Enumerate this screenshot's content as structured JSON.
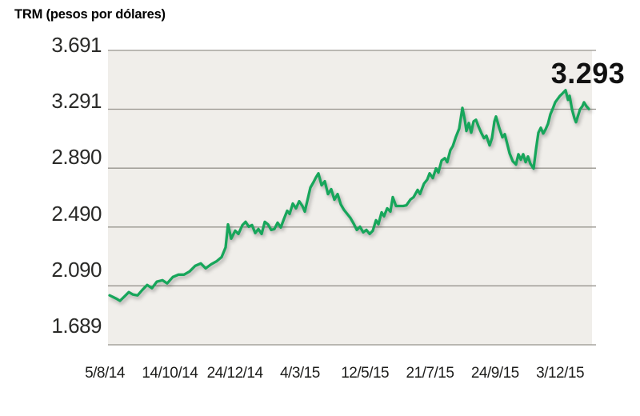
{
  "header": {
    "title": "TRM (pesos por dólares)"
  },
  "annotation": {
    "last_value_label": "3.293"
  },
  "chart_data": {
    "type": "line",
    "title": "TRM (pesos por dólares)",
    "series_name": "TRM",
    "ylabel": "pesos por dólar",
    "grid": "horizontal",
    "legend_position": "none",
    "y_range": [
      1689,
      3691
    ],
    "y_ticks": [
      {
        "label": "3.691",
        "value": 3691
      },
      {
        "label": "3.291",
        "value": 3291
      },
      {
        "label": "2.890",
        "value": 2890
      },
      {
        "label": "2.490",
        "value": 2490
      },
      {
        "label": "2.090",
        "value": 2090
      },
      {
        "label": "1.689",
        "value": 1689
      }
    ],
    "x_tick_labels": [
      "5/8/14",
      "14/10/14",
      "24/12/14",
      "4/3/15",
      "12/5/15",
      "21/7/15",
      "24/9/15",
      "3/12/15"
    ],
    "last_value": 3293,
    "last_value_label": "3.293",
    "colors": {
      "line": "#17a65b",
      "plot_background": "#f0eeea",
      "grid": "#97948e",
      "text": "#1d1d1b"
    },
    "points_x_unit": "px from plot left edge (plot width 610 px, 5/8/14 -> mid-Dec 2015)",
    "points": [
      [
        2,
        2025
      ],
      [
        10,
        2004
      ],
      [
        15,
        1988
      ],
      [
        21,
        2020
      ],
      [
        26,
        2047
      ],
      [
        31,
        2031
      ],
      [
        37,
        2025
      ],
      [
        43,
        2063
      ],
      [
        49,
        2096
      ],
      [
        55,
        2074
      ],
      [
        61,
        2118
      ],
      [
        68,
        2128
      ],
      [
        74,
        2107
      ],
      [
        81,
        2150
      ],
      [
        88,
        2166
      ],
      [
        95,
        2166
      ],
      [
        102,
        2188
      ],
      [
        109,
        2226
      ],
      [
        116,
        2242
      ],
      [
        122,
        2209
      ],
      [
        129,
        2237
      ],
      [
        136,
        2258
      ],
      [
        142,
        2285
      ],
      [
        147,
        2351
      ],
      [
        150,
        2508
      ],
      [
        154,
        2411
      ],
      [
        159,
        2465
      ],
      [
        163,
        2443
      ],
      [
        168,
        2503
      ],
      [
        172,
        2525
      ],
      [
        176,
        2492
      ],
      [
        180,
        2503
      ],
      [
        184,
        2449
      ],
      [
        188,
        2476
      ],
      [
        192,
        2443
      ],
      [
        196,
        2525
      ],
      [
        200,
        2508
      ],
      [
        204,
        2470
      ],
      [
        208,
        2476
      ],
      [
        212,
        2519
      ],
      [
        216,
        2487
      ],
      [
        220,
        2546
      ],
      [
        224,
        2600
      ],
      [
        227,
        2579
      ],
      [
        231,
        2649
      ],
      [
        235,
        2617
      ],
      [
        239,
        2665
      ],
      [
        243,
        2633
      ],
      [
        246,
        2595
      ],
      [
        249,
        2665
      ],
      [
        253,
        2758
      ],
      [
        257,
        2796
      ],
      [
        260,
        2828
      ],
      [
        263,
        2855
      ],
      [
        267,
        2774
      ],
      [
        271,
        2801
      ],
      [
        275,
        2714
      ],
      [
        279,
        2747
      ],
      [
        283,
        2676
      ],
      [
        287,
        2714
      ],
      [
        291,
        2644
      ],
      [
        295,
        2606
      ],
      [
        299,
        2579
      ],
      [
        303,
        2552
      ],
      [
        307,
        2514
      ],
      [
        311,
        2470
      ],
      [
        315,
        2492
      ],
      [
        319,
        2454
      ],
      [
        323,
        2470
      ],
      [
        327,
        2443
      ],
      [
        331,
        2465
      ],
      [
        335,
        2536
      ],
      [
        338,
        2509
      ],
      [
        342,
        2590
      ],
      [
        345,
        2563
      ],
      [
        349,
        2617
      ],
      [
        353,
        2595
      ],
      [
        356,
        2693
      ],
      [
        360,
        2633
      ],
      [
        365,
        2633
      ],
      [
        369,
        2633
      ],
      [
        373,
        2638
      ],
      [
        378,
        2677
      ],
      [
        382,
        2693
      ],
      [
        387,
        2742
      ],
      [
        390,
        2715
      ],
      [
        395,
        2785
      ],
      [
        399,
        2812
      ],
      [
        402,
        2855
      ],
      [
        406,
        2823
      ],
      [
        410,
        2888
      ],
      [
        413,
        2861
      ],
      [
        417,
        2942
      ],
      [
        421,
        2958
      ],
      [
        424,
        2931
      ],
      [
        428,
        3013
      ],
      [
        431,
        3040
      ],
      [
        435,
        3105
      ],
      [
        439,
        3159
      ],
      [
        443,
        3300
      ],
      [
        446,
        3219
      ],
      [
        448,
        3143
      ],
      [
        451,
        3197
      ],
      [
        454,
        3132
      ],
      [
        457,
        3208
      ],
      [
        460,
        3219
      ],
      [
        463,
        3175
      ],
      [
        467,
        3126
      ],
      [
        470,
        3094
      ],
      [
        473,
        3110
      ],
      [
        477,
        3045
      ],
      [
        480,
        3094
      ],
      [
        483,
        3208
      ],
      [
        485,
        3241
      ],
      [
        489,
        3165
      ],
      [
        493,
        3100
      ],
      [
        496,
        3121
      ],
      [
        499,
        3056
      ],
      [
        502,
        2991
      ],
      [
        506,
        2937
      ],
      [
        510,
        2915
      ],
      [
        513,
        2985
      ],
      [
        516,
        2948
      ],
      [
        519,
        2985
      ],
      [
        522,
        2931
      ],
      [
        525,
        2969
      ],
      [
        528,
        2920
      ],
      [
        532,
        2888
      ],
      [
        535,
        3018
      ],
      [
        538,
        3132
      ],
      [
        541,
        3165
      ],
      [
        544,
        3126
      ],
      [
        547,
        3154
      ],
      [
        550,
        3192
      ],
      [
        553,
        3257
      ],
      [
        556,
        3295
      ],
      [
        559,
        3338
      ],
      [
        562,
        3360
      ],
      [
        565,
        3382
      ],
      [
        568,
        3398
      ],
      [
        572,
        3420
      ],
      [
        575,
        3355
      ],
      [
        577,
        3382
      ],
      [
        580,
        3290
      ],
      [
        583,
        3230
      ],
      [
        585,
        3203
      ],
      [
        590,
        3290
      ],
      [
        593,
        3312
      ],
      [
        595,
        3338
      ],
      [
        598,
        3312
      ],
      [
        601,
        3293
      ]
    ]
  }
}
